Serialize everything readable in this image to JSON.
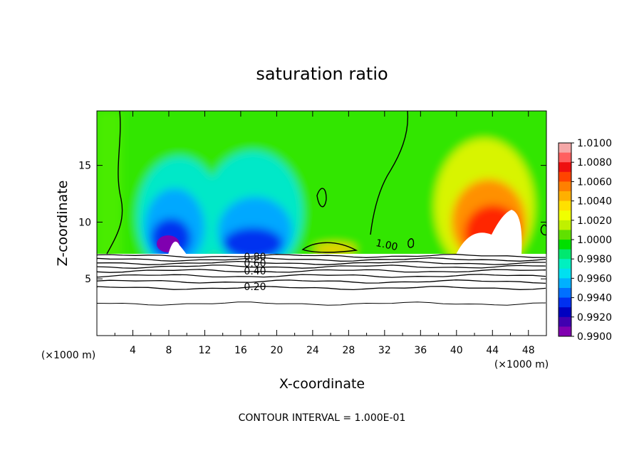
{
  "chart_data": {
    "type": "heatmap",
    "title": "saturation ratio",
    "xlabel": "X-coordinate",
    "ylabel": "Z-coordinate",
    "x_unit_label": "(×1000 m)",
    "y_unit_label": "(×1000 m)",
    "x_ticks": [
      4,
      8,
      12,
      16,
      20,
      24,
      28,
      32,
      36,
      40,
      44,
      48
    ],
    "y_ticks": [
      5,
      10,
      15
    ],
    "xlim": [
      0,
      50
    ],
    "ylim": [
      0,
      19.8
    ],
    "grid": false,
    "legend_position": "right",
    "colorbar": {
      "min": 0.99,
      "max": 1.01,
      "tick_labels": [
        "1.0100",
        "1.0080",
        "1.0060",
        "1.0040",
        "1.0020",
        "1.0000",
        "0.9980",
        "0.9960",
        "0.9940",
        "0.9920",
        "0.9900"
      ]
    },
    "contour_labels": [
      "1.00",
      "0.80",
      "0.60",
      "0.40",
      "0.20"
    ],
    "footnote": "CONTOUR INTERVAL = 1.000E-01",
    "features": {
      "surface_layer_top_z": 7.3,
      "dry_minimum_x": [
        8,
        17
      ],
      "moist_maximum_x": [
        45
      ],
      "contour_levels_below_surface_layer": [
        0.9,
        0.8,
        0.7,
        0.6,
        0.5,
        0.4,
        0.3,
        0.2,
        0.1
      ]
    }
  }
}
